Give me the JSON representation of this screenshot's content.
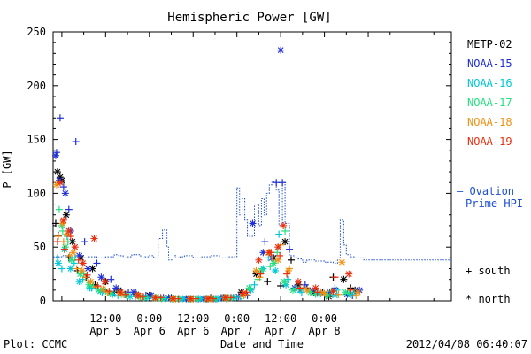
{
  "chart_data": {
    "type": "scatter",
    "title": "Hemispheric Power [GW]",
    "ylabel": "P [GW]",
    "xlabel": "Date and Time",
    "ylim": [
      0,
      250
    ],
    "xlim": [
      -0.1,
      4.45
    ],
    "x_units": "days after 2012-04-05 00:00",
    "y_ticks": [
      "0",
      "50",
      "100",
      "150",
      "200",
      "250"
    ],
    "y_tick_values": [
      0,
      50,
      100,
      150,
      200,
      250
    ],
    "x_ticks": [
      {
        "t": 0.5,
        "line1": "12:00",
        "line2": "Apr 5"
      },
      {
        "t": 1.0,
        "line1": "0:00",
        "line2": "Apr 6"
      },
      {
        "t": 1.5,
        "line1": "12:00",
        "line2": "Apr 6"
      },
      {
        "t": 2.0,
        "line1": "0:00",
        "line2": "Apr 7"
      },
      {
        "t": 2.5,
        "line1": "12:00",
        "line2": "Apr 7"
      },
      {
        "t": 3.0,
        "line1": "0:00",
        "line2": "Apr 8"
      }
    ],
    "footer_left": "Plot: CCMC",
    "footer_right": "2012/04/08 06:40:07",
    "legend": [
      {
        "name": "METP-02",
        "color": "#000000"
      },
      {
        "name": "NOAA-15",
        "color": "#1f2fd6"
      },
      {
        "name": "NOAA-16",
        "color": "#00c8d8"
      },
      {
        "name": "NOAA-17",
        "color": "#22e080"
      },
      {
        "name": "NOAA-18",
        "color": "#f09010"
      },
      {
        "name": "NOAA-19",
        "color": "#e83010"
      }
    ],
    "ovation": {
      "name_line1": "— Ovation",
      "name_line2": "Prime HPI",
      "color": "#1d4fd0",
      "x": [
        -0.1,
        0.0,
        0.05,
        0.1,
        0.2,
        0.3,
        0.4,
        0.5,
        0.58,
        0.6,
        0.65,
        0.7,
        0.75,
        0.8,
        0.9,
        0.95,
        1.0,
        1.05,
        1.1,
        1.15,
        1.2,
        1.22,
        1.27,
        1.3,
        1.35,
        1.4,
        1.5,
        1.6,
        1.7,
        1.8,
        1.9,
        2.0,
        2.0,
        2.03,
        2.06,
        2.09,
        2.12,
        2.2,
        2.25,
        2.28,
        2.31,
        2.34,
        2.37,
        2.4,
        2.45,
        2.48,
        2.52,
        2.55,
        2.6,
        2.65,
        2.7,
        2.75,
        2.8,
        2.9,
        3.0,
        3.1,
        3.15,
        3.18,
        3.22,
        3.25,
        3.3,
        3.35,
        3.4,
        3.45
      ],
      "y": [
        41,
        42,
        41,
        41,
        40,
        41,
        40,
        41,
        41,
        43,
        42,
        40,
        41,
        43,
        40,
        41,
        42,
        40,
        58,
        66,
        50,
        38,
        42,
        40,
        41,
        42,
        40,
        41,
        42,
        40,
        41,
        42,
        105,
        80,
        95,
        75,
        60,
        90,
        70,
        95,
        80,
        100,
        108,
        111,
        103,
        70,
        110,
        72,
        42,
        40,
        39,
        36,
        38,
        37,
        36,
        35,
        40,
        75,
        52,
        43,
        41,
        40,
        40,
        38
      ]
    },
    "series": [
      {
        "name": "METP-02",
        "color": "#000000",
        "south": {
          "x": [
            -0.07,
            -0.04,
            0.08,
            0.18,
            0.28,
            0.38,
            0.48,
            0.6,
            0.72,
            0.9,
            1.1,
            1.3,
            1.5,
            1.7,
            1.9,
            2.15,
            2.35,
            2.5,
            2.62,
            2.8,
            2.98,
            3.1,
            3.3
          ],
          "y": [
            72,
            61,
            40,
            28,
            22,
            15,
            10,
            8,
            6,
            4,
            3,
            2,
            2,
            3,
            3,
            10,
            18,
            14,
            38,
            12,
            8,
            22,
            12
          ]
        },
        "north": {
          "x": [
            -0.05,
            -0.02,
            0.0,
            0.05,
            0.12,
            0.22,
            0.35,
            0.5,
            0.65,
            0.85,
            1.0,
            1.25,
            1.45,
            1.65,
            1.85,
            2.05,
            2.22,
            2.42,
            2.55,
            2.7,
            2.88,
            3.05,
            3.22,
            3.35
          ],
          "y": [
            120,
            115,
            112,
            80,
            55,
            40,
            30,
            18,
            10,
            6,
            5,
            3,
            2,
            2,
            3,
            8,
            25,
            40,
            55,
            15,
            8,
            4,
            20,
            10
          ]
        }
      },
      {
        "name": "NOAA-15",
        "color": "#1f2fd6",
        "south": {
          "x": [
            -0.06,
            -0.02,
            0.02,
            0.08,
            0.16,
            0.26,
            0.4,
            0.56,
            0.76,
            0.96,
            1.16,
            1.36,
            1.56,
            1.76,
            1.96,
            2.12,
            2.32,
            2.45,
            2.52,
            2.6,
            2.78,
            2.96,
            3.12,
            3.32
          ],
          "y": [
            138,
            170,
            106,
            85,
            148,
            55,
            35,
            20,
            8,
            5,
            3,
            2,
            2,
            2,
            3,
            5,
            55,
            110,
            110,
            48,
            15,
            7,
            12,
            5
          ]
        },
        "north": {
          "x": [
            -0.07,
            -0.03,
            0.04,
            0.1,
            0.2,
            0.3,
            0.45,
            0.62,
            0.82,
            1.02,
            1.22,
            1.42,
            1.62,
            1.82,
            2.02,
            2.18,
            2.3,
            2.4,
            2.5,
            2.66,
            2.86,
            3.06,
            3.26,
            3.4
          ],
          "y": [
            135,
            112,
            100,
            65,
            42,
            30,
            22,
            12,
            8,
            5,
            3,
            2,
            2,
            3,
            4,
            72,
            45,
            40,
            233,
            12,
            10,
            8,
            6,
            10
          ]
        }
      },
      {
        "name": "NOAA-16",
        "color": "#00c8d8",
        "south": {
          "x": [
            -0.05,
            0.0,
            0.06,
            0.14,
            0.24,
            0.34,
            0.46,
            0.64,
            0.84,
            1.04,
            1.24,
            1.44,
            1.64,
            1.84,
            2.04,
            2.2,
            2.36,
            2.48,
            2.58,
            2.74,
            2.94,
            3.14,
            3.34
          ],
          "y": [
            40,
            30,
            60,
            35,
            20,
            12,
            8,
            5,
            4,
            3,
            2,
            2,
            2,
            3,
            4,
            15,
            40,
            62,
            20,
            8,
            6,
            10,
            8
          ]
        },
        "north": {
          "x": [
            -0.04,
            0.03,
            0.1,
            0.2,
            0.32,
            0.44,
            0.58,
            0.78,
            0.98,
            1.18,
            1.38,
            1.58,
            1.78,
            1.98,
            2.16,
            2.3,
            2.44,
            2.56,
            2.72,
            2.92,
            3.12,
            3.3
          ],
          "y": [
            35,
            48,
            30,
            18,
            12,
            9,
            6,
            4,
            3,
            2,
            2,
            2,
            2,
            3,
            10,
            30,
            28,
            15,
            10,
            7,
            5,
            6
          ]
        }
      },
      {
        "name": "NOAA-17",
        "color": "#22e080",
        "south": {
          "x": [
            -0.03,
            0.01,
            0.07,
            0.15,
            0.25,
            0.36,
            0.5,
            0.68,
            0.88,
            1.08,
            1.28,
            1.48,
            1.68,
            1.88,
            2.08,
            2.24,
            2.38,
            2.46,
            2.55,
            2.68,
            2.9,
            3.08,
            3.28
          ],
          "y": [
            85,
            65,
            55,
            40,
            25,
            14,
            9,
            6,
            4,
            3,
            2,
            2,
            2,
            2,
            5,
            20,
            32,
            45,
            65,
            12,
            6,
            9,
            7
          ]
        },
        "north": {
          "x": [
            0.0,
            0.04,
            0.11,
            0.21,
            0.31,
            0.42,
            0.55,
            0.74,
            0.94,
            1.14,
            1.34,
            1.54,
            1.74,
            1.94,
            2.14,
            2.28,
            2.42,
            2.54,
            2.64,
            2.84,
            3.04,
            3.24
          ],
          "y": [
            70,
            50,
            38,
            25,
            15,
            10,
            7,
            5,
            3,
            2,
            2,
            2,
            2,
            3,
            12,
            28,
            35,
            18,
            10,
            8,
            5,
            8
          ]
        }
      },
      {
        "name": "NOAA-18",
        "color": "#f09010",
        "south": {
          "x": [
            -0.04,
            0.02,
            0.09,
            0.17,
            0.27,
            0.39,
            0.52,
            0.7,
            0.9,
            1.1,
            1.3,
            1.5,
            1.7,
            1.9,
            2.1,
            2.26,
            2.4,
            2.5,
            2.6,
            2.76,
            2.96,
            3.16,
            3.36
          ],
          "y": [
            60,
            55,
            42,
            30,
            22,
            13,
            8,
            6,
            4,
            3,
            2,
            2,
            2,
            3,
            6,
            22,
            40,
            52,
            30,
            12,
            8,
            6,
            5
          ]
        },
        "north": {
          "x": [
            -0.06,
            0.01,
            0.06,
            0.13,
            0.23,
            0.33,
            0.47,
            0.66,
            0.86,
            1.06,
            1.26,
            1.46,
            1.66,
            1.86,
            2.06,
            2.22,
            2.36,
            2.47,
            2.59,
            2.8,
            3.0,
            3.2,
            3.38
          ],
          "y": [
            108,
            72,
            62,
            45,
            28,
            18,
            11,
            7,
            5,
            3,
            2,
            2,
            2,
            3,
            5,
            28,
            45,
            38,
            28,
            10,
            7,
            36,
            8
          ]
        }
      },
      {
        "name": "NOAA-19",
        "color": "#e83010",
        "south": {
          "x": [
            -0.05,
            0.03,
            0.1,
            0.19,
            0.29,
            0.41,
            0.54,
            0.73,
            0.93,
            1.13,
            1.33,
            1.53,
            1.73,
            1.93,
            2.11,
            2.27,
            2.39,
            2.49,
            2.57,
            2.72,
            2.92,
            3.12,
            3.3
          ],
          "y": [
            55,
            48,
            60,
            38,
            24,
            14,
            9,
            6,
            4,
            3,
            2,
            2,
            2,
            3,
            8,
            25,
            45,
            42,
            25,
            12,
            8,
            22,
            10
          ]
        },
        "north": {
          "x": [
            -0.02,
            0.02,
            0.08,
            0.15,
            0.24,
            0.37,
            0.49,
            0.67,
            0.87,
            1.07,
            1.27,
            1.47,
            1.67,
            1.87,
            2.07,
            2.25,
            2.37,
            2.47,
            2.53,
            2.7,
            2.9,
            3.1,
            3.28
          ],
          "y": [
            110,
            75,
            65,
            50,
            35,
            58,
            18,
            8,
            5,
            3,
            2,
            2,
            2,
            3,
            7,
            38,
            45,
            50,
            70,
            18,
            12,
            9,
            25
          ]
        }
      }
    ],
    "marker_legend": [
      {
        "glyph": "+",
        "label": "south"
      },
      {
        "glyph": "*",
        "label": "north"
      }
    ]
  }
}
